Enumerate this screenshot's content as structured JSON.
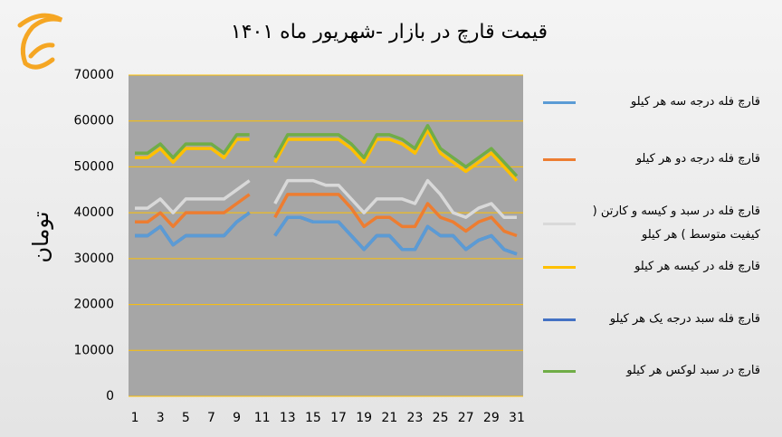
{
  "chart_data": {
    "type": "line",
    "title": "قیمت قارچ در بازار -شهریور ماه ۱۴۰۱",
    "y_label": "تومان",
    "x": [
      1,
      2,
      3,
      4,
      5,
      6,
      7,
      8,
      9,
      10,
      11,
      12,
      13,
      14,
      15,
      16,
      17,
      18,
      19,
      20,
      21,
      22,
      23,
      24,
      25,
      26,
      27,
      28,
      29,
      30,
      31
    ],
    "xlim": [
      0.5,
      31.5
    ],
    "xticks": [
      1,
      3,
      5,
      7,
      9,
      11,
      13,
      15,
      17,
      19,
      21,
      23,
      25,
      27,
      29,
      31
    ],
    "ylim": [
      0,
      70000
    ],
    "yticks": [
      0,
      10000,
      20000,
      30000,
      40000,
      50000,
      60000,
      70000
    ],
    "grid": true,
    "legend": "right",
    "series": [
      {
        "name": "قارچ فله درجه سه هر کیلو",
        "color": "#5b9bd5",
        "values": [
          35000,
          35000,
          37000,
          33000,
          35000,
          35000,
          35000,
          35000,
          38000,
          40000,
          null,
          35000,
          39000,
          39000,
          38000,
          38000,
          38000,
          35000,
          32000,
          35000,
          35000,
          32000,
          32000,
          37000,
          35000,
          35000,
          32000,
          34000,
          35000,
          32000,
          31000
        ]
      },
      {
        "name": "قارچ فله درجه دو هر کیلو",
        "color": "#ed7d31",
        "values": [
          38000,
          38000,
          40000,
          37000,
          40000,
          40000,
          40000,
          40000,
          42000,
          44000,
          null,
          39000,
          44000,
          44000,
          44000,
          44000,
          44000,
          41000,
          37000,
          39000,
          39000,
          37000,
          37000,
          42000,
          39000,
          38000,
          36000,
          38000,
          39000,
          36000,
          35000
        ]
      },
      {
        "name": "قارچ فله در سبد و کیسه و کارتن ( کیفیت متوسط ) هر کیلو",
        "color": "#d9d9d9",
        "values": [
          41000,
          41000,
          43000,
          40000,
          43000,
          43000,
          43000,
          43000,
          45000,
          47000,
          null,
          42000,
          47000,
          47000,
          47000,
          46000,
          46000,
          43000,
          40000,
          43000,
          43000,
          43000,
          42000,
          47000,
          44000,
          40000,
          39000,
          41000,
          42000,
          39000,
          39000
        ]
      },
      {
        "name": "قارچ فله در کیسه هر کیلو",
        "color": "#ffc000",
        "values": [
          52000,
          52000,
          54000,
          51000,
          54000,
          54000,
          54000,
          52000,
          56000,
          56000,
          null,
          51000,
          56000,
          56000,
          56000,
          56000,
          56000,
          54000,
          51000,
          56000,
          56000,
          55000,
          53000,
          58000,
          53000,
          51000,
          49000,
          51000,
          53000,
          50000,
          47000
        ]
      },
      {
        "name": "قارچ فله سبد درجه یک هر کیلو",
        "color": "#4472c4",
        "values": [
          35000,
          35000,
          37000,
          33000,
          35000,
          35000,
          35000,
          35000,
          38000,
          40000,
          null,
          35000,
          39000,
          39000,
          38000,
          38000,
          38000,
          35000,
          32000,
          35000,
          35000,
          32000,
          32000,
          37000,
          35000,
          35000,
          32000,
          34000,
          35000,
          32000,
          31000
        ]
      },
      {
        "name": "قارچ در سبد لوکس هر کیلو",
        "color": "#70ad47",
        "values": [
          53000,
          53000,
          55000,
          52000,
          55000,
          55000,
          55000,
          53000,
          57000,
          57000,
          null,
          52000,
          57000,
          57000,
          57000,
          57000,
          57000,
          55000,
          52000,
          57000,
          57000,
          56000,
          54000,
          59000,
          54000,
          52000,
          50000,
          52000,
          54000,
          51000,
          48000
        ]
      }
    ]
  }
}
